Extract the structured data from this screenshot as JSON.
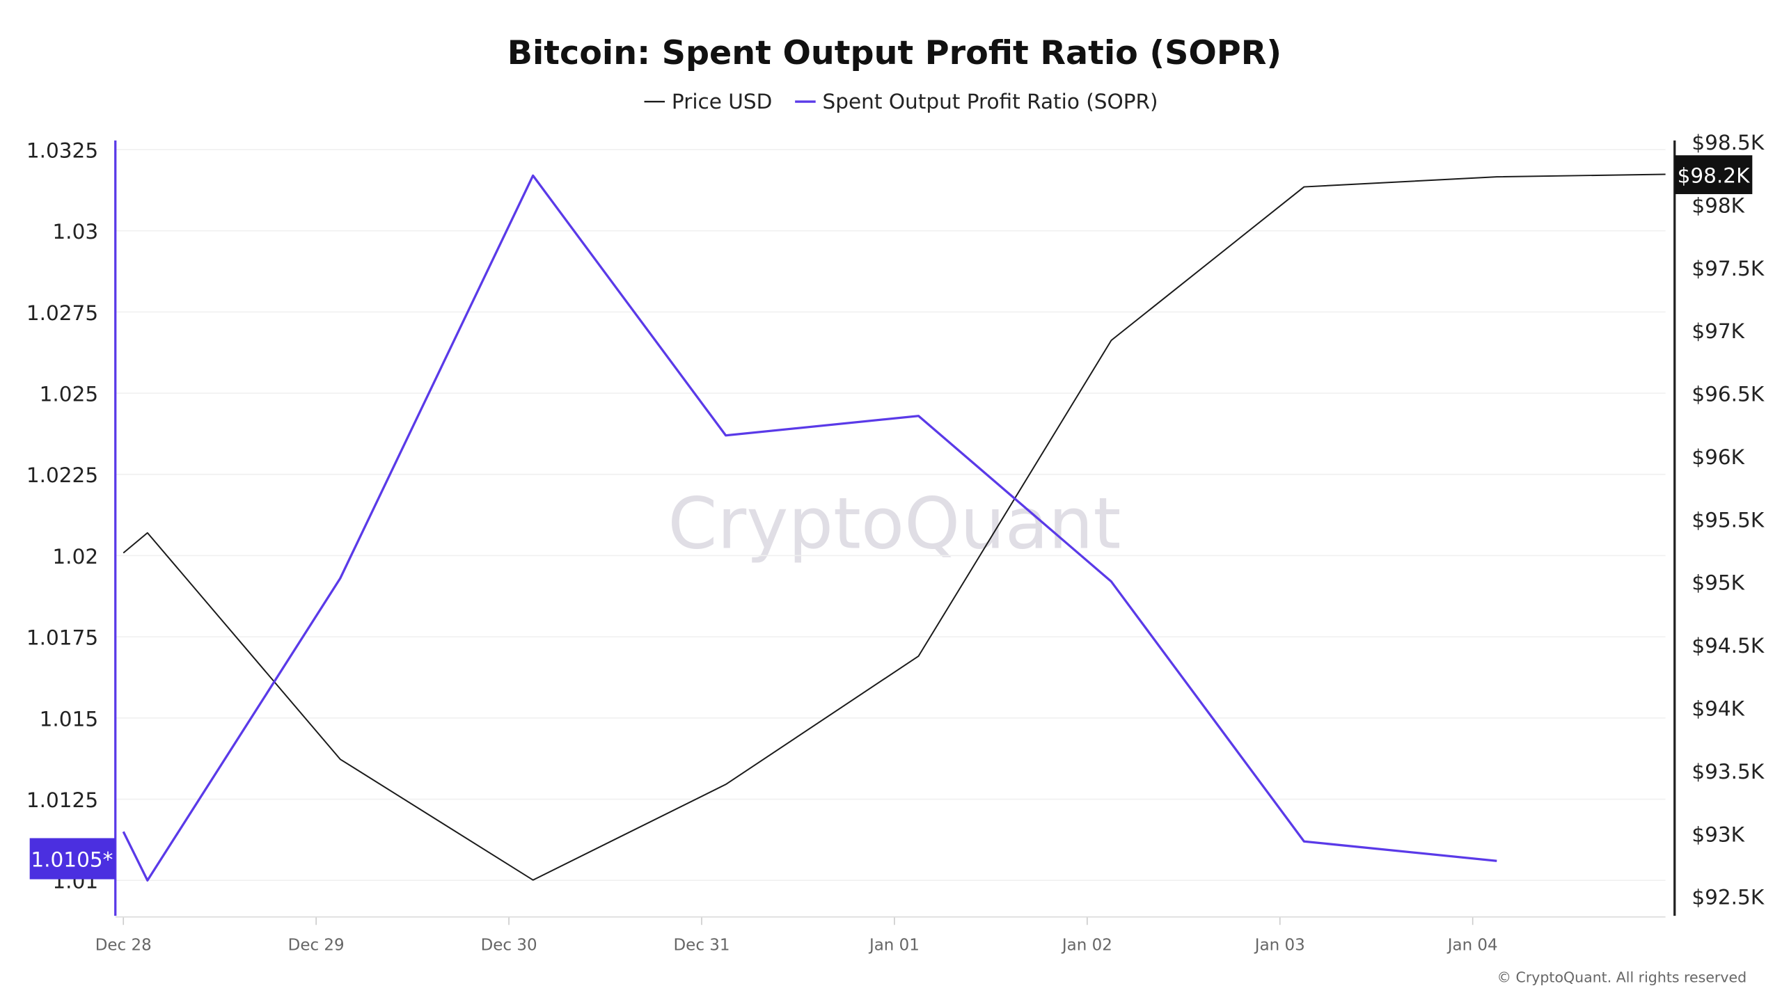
{
  "chart_data": {
    "type": "line",
    "title": "Bitcoin: Spent Output Profit Ratio (SOPR)",
    "legend": {
      "placement": "top-center",
      "entries": [
        "Price USD",
        "Spent Output Profit Ratio (SOPR)"
      ]
    },
    "watermark": "CryptoQuant",
    "copyright": "© CryptoQuant. All rights reserved",
    "x_ticks": [
      "Dec 28",
      "Dec 29",
      "Dec 30",
      "Dec 31",
      "Jan 01",
      "Jan 02",
      "Jan 03",
      "Jan 04"
    ],
    "x_range": [
      "2024-12-28T00:00",
      "2025-01-05T00:00"
    ],
    "grid": true,
    "left_axis": {
      "ticks": [
        "1.01",
        "1.0125",
        "1.015",
        "1.0175",
        "1.02",
        "1.0225",
        "1.025",
        "1.0275",
        "1.03",
        "1.0325"
      ],
      "range": [
        1.0089,
        1.0329
      ],
      "current_label": "1.0105*"
    },
    "right_axis": {
      "ticks": [
        "$92.5K",
        "$93K",
        "$93.5K",
        "$94K",
        "$94.5K",
        "$95K",
        "$95.5K",
        "$96K",
        "$96.5K",
        "$97K",
        "$97.5K",
        "$98K",
        "$98.5K"
      ],
      "range": [
        92500,
        98500
      ],
      "current_label": "$98.2K"
    },
    "series": [
      {
        "name": "Price USD",
        "color": "#1a1a1a",
        "axis": "right",
        "x": [
          "2024-12-28T00:00",
          "2024-12-28T03:00",
          "2024-12-29T03:00",
          "2024-12-30T03:00",
          "2024-12-31T03:00",
          "2025-01-01T03:00",
          "2025-01-02T03:00",
          "2025-01-03T03:00",
          "2025-01-04T03:00",
          "2025-01-05T00:00"
        ],
        "values": [
          95230,
          95390,
          93590,
          92630,
          93390,
          94410,
          96920,
          98140,
          98220,
          98240
        ]
      },
      {
        "name": "Spent Output Profit Ratio (SOPR)",
        "color": "#5a3ae8",
        "axis": "left",
        "x": [
          "2024-12-28T00:00",
          "2024-12-28T03:00",
          "2024-12-29T03:00",
          "2024-12-30T03:00",
          "2024-12-31T03:00",
          "2025-01-01T03:00",
          "2025-01-02T03:00",
          "2025-01-03T03:00",
          "2025-01-04T03:00"
        ],
        "values": [
          1.0115,
          1.01,
          1.0193,
          1.0317,
          1.0237,
          1.0243,
          1.0192,
          1.0112,
          1.0106
        ]
      }
    ]
  }
}
